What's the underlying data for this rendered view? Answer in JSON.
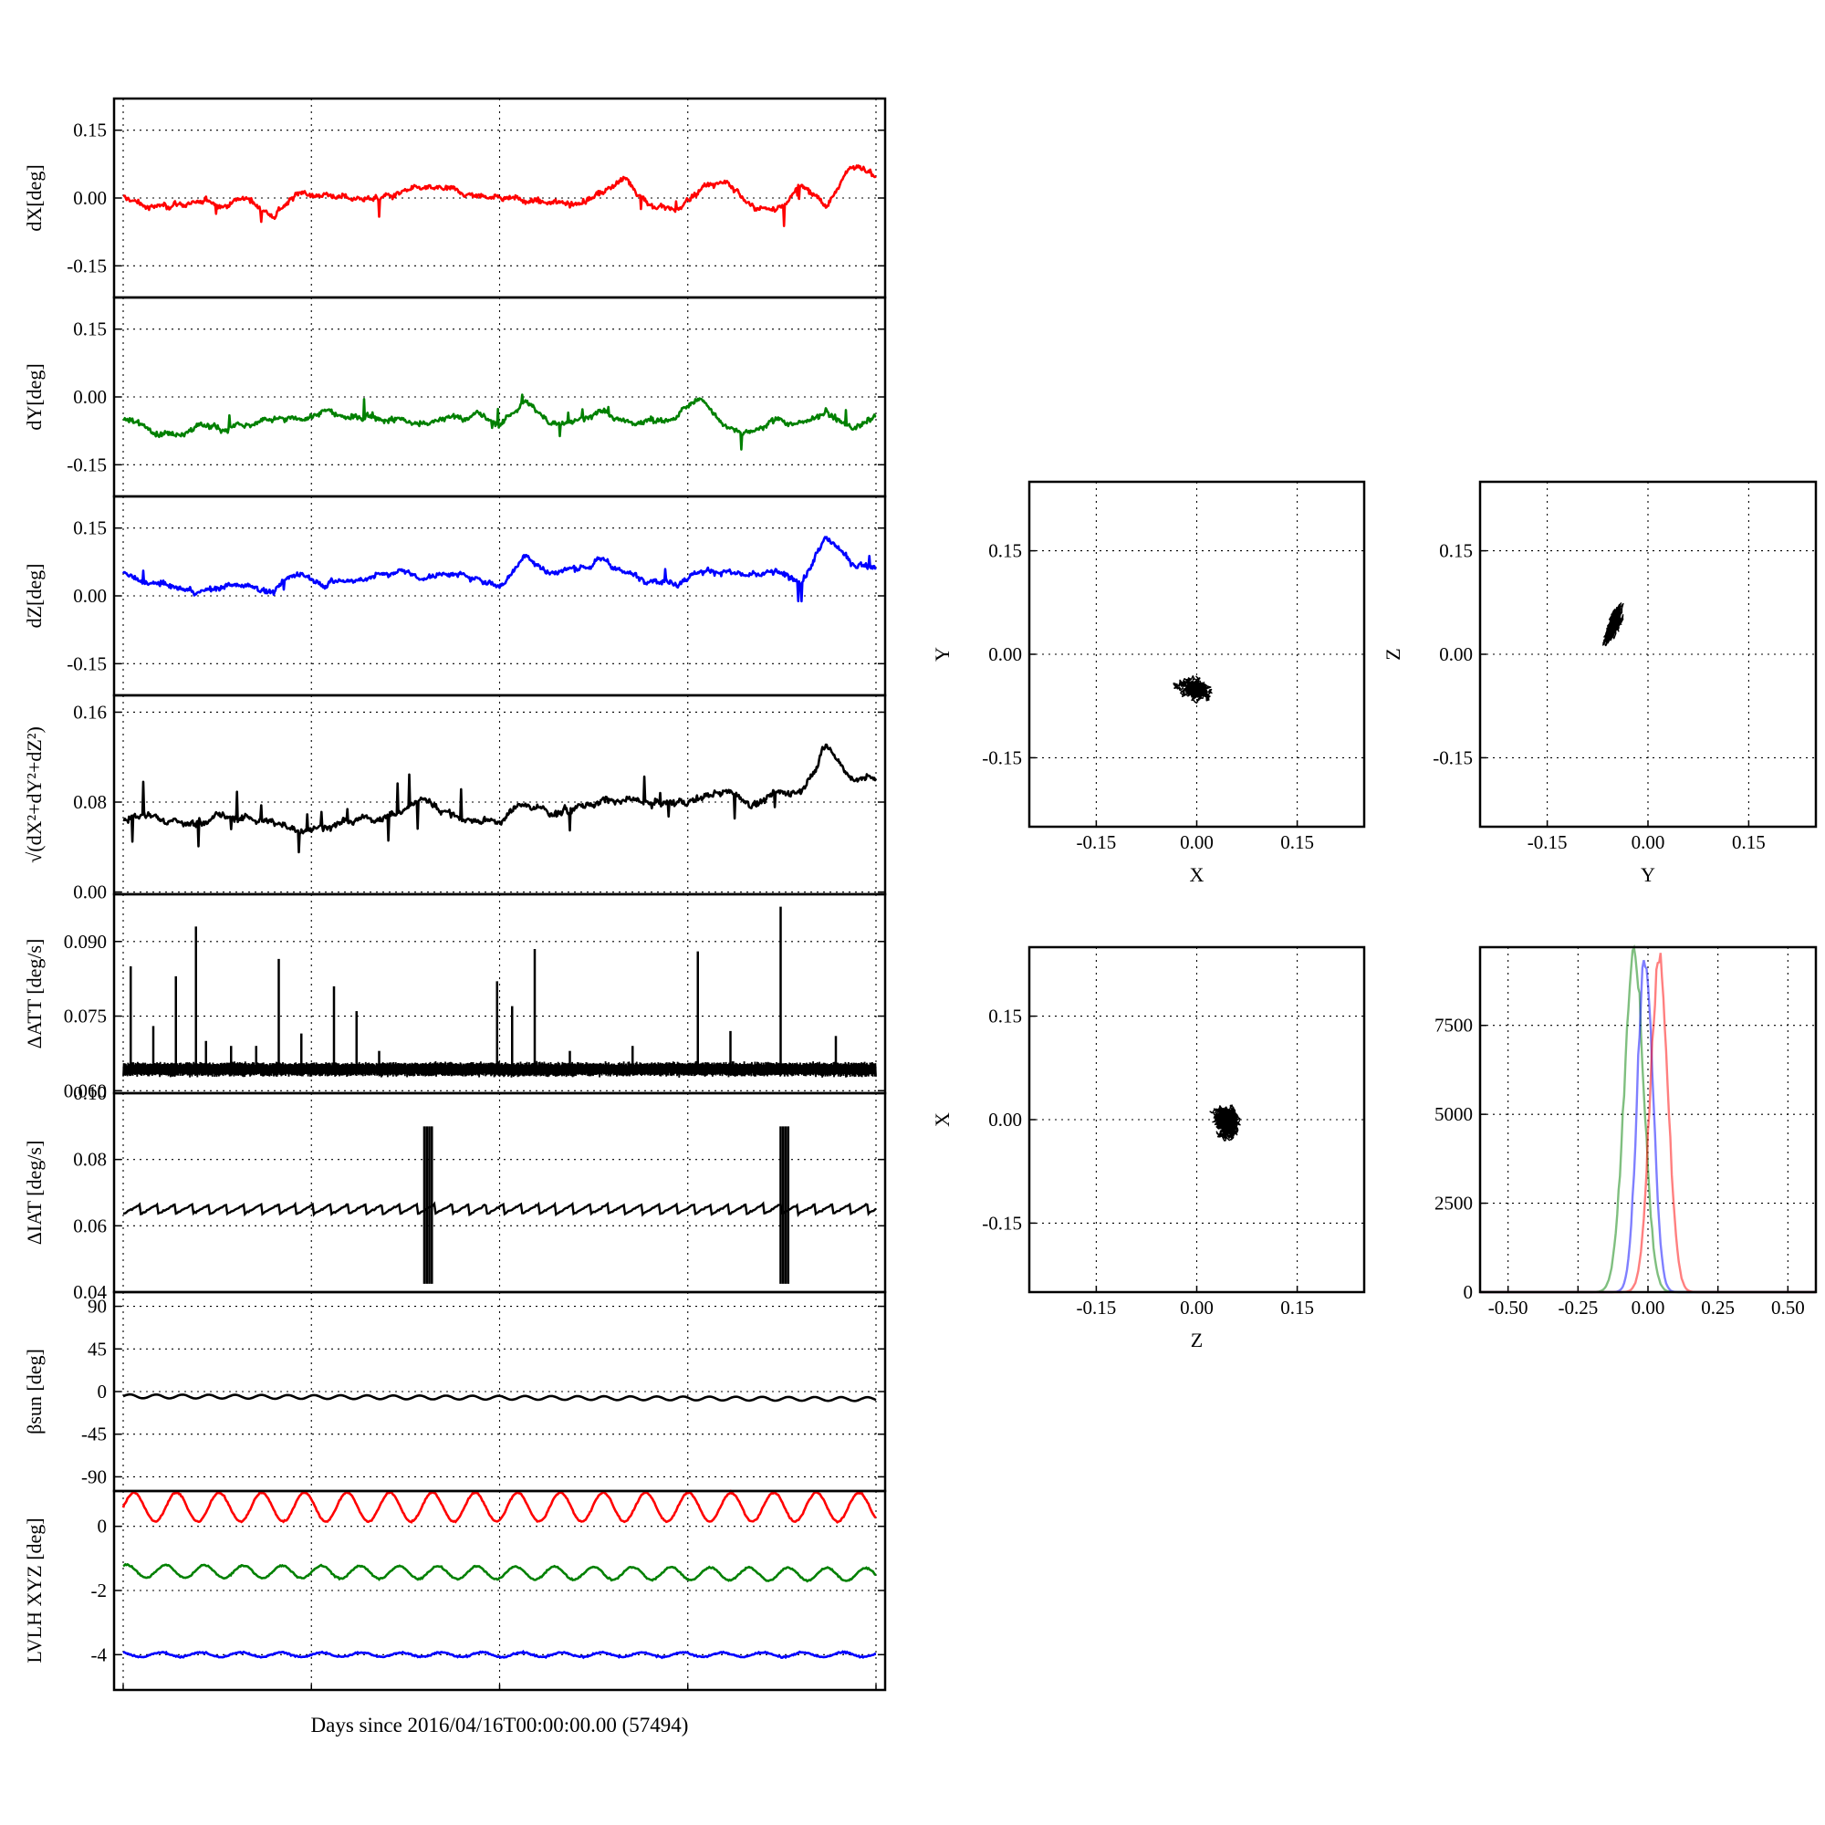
{
  "colors": {
    "x": "#ff0000",
    "y": "#008000",
    "z": "#0000ff",
    "k": "#000000"
  },
  "chart_data": [
    {
      "type": "line",
      "ylabel": "dX[deg]",
      "yticks": [
        "0.15",
        "0.00",
        "-0.15"
      ],
      "ylim": [
        -0.22,
        0.22
      ],
      "xlim": [
        0,
        30
      ],
      "grid": true,
      "series": [
        {
          "color": "#ff0000",
          "x": [
            0,
            1,
            2,
            3,
            4,
            5,
            6,
            7,
            8,
            9,
            10,
            11,
            12,
            13,
            14,
            15,
            16,
            17,
            18,
            19,
            20,
            21,
            22,
            23,
            24,
            25,
            26,
            27,
            28,
            29,
            30
          ],
          "y": [
            0.0,
            -0.02,
            -0.01,
            -0.01,
            -0.01,
            0.0,
            -0.04,
            0.01,
            0.01,
            0.0,
            0.0,
            0.01,
            0.02,
            0.02,
            0.0,
            0.01,
            -0.01,
            -0.01,
            -0.01,
            0.01,
            0.04,
            -0.01,
            -0.03,
            0.02,
            0.04,
            -0.02,
            -0.03,
            0.03,
            -0.02,
            0.07,
            0.05
          ]
        }
      ]
    },
    {
      "type": "line",
      "ylabel": "dY[deg]",
      "yticks": [
        "0.15",
        "0.00",
        "-0.15"
      ],
      "ylim": [
        -0.22,
        0.22
      ],
      "xlim": [
        0,
        30
      ],
      "grid": true,
      "series": [
        {
          "color": "#008000",
          "x": [
            0,
            1,
            2,
            3,
            4,
            5,
            6,
            7,
            8,
            9,
            10,
            11,
            12,
            13,
            14,
            15,
            16,
            17,
            18,
            19,
            20,
            21,
            22,
            23,
            24,
            25,
            26,
            27,
            28,
            29,
            30
          ],
          "y": [
            -0.05,
            -0.07,
            -0.08,
            -0.06,
            -0.07,
            -0.06,
            -0.05,
            -0.05,
            -0.03,
            -0.05,
            -0.04,
            -0.05,
            -0.06,
            -0.05,
            -0.04,
            -0.06,
            -0.01,
            -0.06,
            -0.05,
            -0.03,
            -0.06,
            -0.05,
            -0.05,
            0.0,
            -0.06,
            -0.08,
            -0.05,
            -0.06,
            -0.03,
            -0.07,
            -0.04
          ]
        }
      ]
    },
    {
      "type": "line",
      "ylabel": "dZ[deg]",
      "yticks": [
        "0.15",
        "0.00",
        "-0.15"
      ],
      "ylim": [
        -0.22,
        0.22
      ],
      "xlim": [
        0,
        30
      ],
      "grid": true,
      "series": [
        {
          "color": "#0000ff",
          "x": [
            0,
            1,
            2,
            3,
            4,
            5,
            6,
            7,
            8,
            9,
            10,
            11,
            12,
            13,
            14,
            15,
            16,
            17,
            18,
            19,
            20,
            21,
            22,
            23,
            24,
            25,
            26,
            27,
            28,
            29,
            30
          ],
          "y": [
            0.05,
            0.02,
            0.02,
            0.01,
            0.02,
            0.03,
            0.01,
            0.05,
            0.03,
            0.03,
            0.04,
            0.06,
            0.04,
            0.05,
            0.04,
            0.02,
            0.09,
            0.05,
            0.06,
            0.08,
            0.05,
            0.04,
            0.03,
            0.06,
            0.05,
            0.04,
            0.05,
            0.03,
            0.13,
            0.07,
            0.07
          ]
        }
      ]
    },
    {
      "type": "line",
      "ylabel": "√(dX²+dY²+dZ²)",
      "yticks": [
        "0.16",
        "0.08",
        "0.00"
      ],
      "ylim": [
        -0.002,
        0.175
      ],
      "xlim": [
        0,
        30
      ],
      "grid": true,
      "series": [
        {
          "color": "#000000",
          "x": [
            0,
            1,
            2,
            3,
            4,
            5,
            6,
            7,
            8,
            9,
            10,
            11,
            12,
            13,
            14,
            15,
            16,
            17,
            18,
            19,
            20,
            21,
            22,
            23,
            24,
            25,
            26,
            27,
            28,
            29,
            30
          ],
          "y": [
            0.065,
            0.07,
            0.062,
            0.064,
            0.066,
            0.067,
            0.06,
            0.055,
            0.06,
            0.062,
            0.065,
            0.07,
            0.08,
            0.07,
            0.062,
            0.065,
            0.08,
            0.072,
            0.075,
            0.08,
            0.082,
            0.078,
            0.078,
            0.085,
            0.09,
            0.08,
            0.085,
            0.09,
            0.13,
            0.1,
            0.1
          ]
        }
      ]
    },
    {
      "type": "line",
      "ylabel": "ΔATT [deg/s]",
      "yticks": [
        "0.090",
        "0.075",
        "0.060"
      ],
      "ylim": [
        0.0595,
        0.0995
      ],
      "xlim": [
        0,
        30
      ],
      "grid": true,
      "series": [
        {
          "color": "#000000",
          "x": [
            0,
            1,
            2,
            3,
            4,
            5,
            6,
            7,
            8,
            9,
            10,
            11,
            12,
            13,
            14,
            15,
            16,
            17,
            18,
            19,
            20,
            21,
            22,
            23,
            24,
            25,
            26,
            27,
            28,
            29,
            30
          ],
          "y": [
            0.0645,
            0.0645,
            0.064,
            0.0645,
            0.064,
            0.0645,
            0.0645,
            0.064,
            0.0645,
            0.0645,
            0.064,
            0.0645,
            0.0645,
            0.064,
            0.0645,
            0.0645,
            0.064,
            0.0645,
            0.0645,
            0.064,
            0.0645,
            0.0645,
            0.064,
            0.0645,
            0.0645,
            0.064,
            0.0645,
            0.0645,
            0.064,
            0.0645,
            0.0645
          ]
        }
      ],
      "spikes": [
        [
          0.3,
          0.085
        ],
        [
          1.2,
          0.073
        ],
        [
          2.1,
          0.083
        ],
        [
          2.9,
          0.093
        ],
        [
          3.3,
          0.07
        ],
        [
          4.3,
          0.069
        ],
        [
          5.3,
          0.069
        ],
        [
          6.2,
          0.0865
        ],
        [
          7.1,
          0.0715
        ],
        [
          8.4,
          0.081
        ],
        [
          9.3,
          0.076
        ],
        [
          10.2,
          0.068
        ],
        [
          14.9,
          0.082
        ],
        [
          15.5,
          0.077
        ],
        [
          16.4,
          0.0885
        ],
        [
          17.8,
          0.068
        ],
        [
          20.3,
          0.069
        ],
        [
          22.9,
          0.088
        ],
        [
          24.2,
          0.072
        ],
        [
          26.2,
          0.097
        ],
        [
          28.4,
          0.071
        ]
      ]
    },
    {
      "type": "line",
      "ylabel": "ΔIAT [deg/s]",
      "yticks": [
        "0.10",
        "0.08",
        "0.06",
        "0.04"
      ],
      "ylim": [
        0.04,
        0.1
      ],
      "xlim": [
        0,
        30
      ],
      "grid": true,
      "series": [
        {
          "color": "#000000",
          "x": [
            0,
            30
          ],
          "y": [
            0.065,
            0.065
          ]
        }
      ],
      "bursts": [
        [
          12.0,
          12.3
        ],
        [
          26.2,
          26.5
        ]
      ]
    },
    {
      "type": "line",
      "ylabel": "βsun [deg]",
      "yticks": [
        "90",
        "45",
        "0",
        "-45",
        "-90"
      ],
      "ylim": [
        -105,
        105
      ],
      "xlim": [
        0,
        30
      ],
      "grid": true,
      "series": [
        {
          "color": "#000000",
          "x": [
            0,
            30
          ],
          "y": [
            -5,
            -8
          ]
        }
      ]
    },
    {
      "type": "line",
      "ylabel": "LVLH XYZ [deg]",
      "yticks": [
        "0",
        "-2",
        "-4"
      ],
      "ylim": [
        -5.1,
        1.1
      ],
      "xlim": [
        0,
        30
      ],
      "xlabel": "Days since 2016/04/16T00:00:00.00 (57494)",
      "grid": true,
      "series": [
        {
          "color": "#ff0000",
          "x": [
            0,
            30
          ],
          "y": [
            0.6,
            0.6
          ]
        },
        {
          "color": "#008000",
          "x": [
            0,
            30
          ],
          "y": [
            -1.4,
            -1.5
          ]
        },
        {
          "color": "#0000ff",
          "x": [
            0,
            30
          ],
          "y": [
            -4.0,
            -4.0
          ]
        }
      ]
    },
    {
      "type": "scatter",
      "xlabel": "X",
      "ylabel": "Y",
      "xticks": [
        "-0.15",
        "0.00",
        "0.15"
      ],
      "yticks": [
        "0.15",
        "0.00",
        "-0.15"
      ],
      "xlim": [
        -0.25,
        0.25
      ],
      "ylim": [
        -0.25,
        0.25
      ],
      "grid": true,
      "center": [
        0.0,
        -0.05
      ],
      "spread": [
        0.025,
        0.018
      ],
      "tilt": 0
    },
    {
      "type": "scatter",
      "xlabel": "Y",
      "ylabel": "Z",
      "xticks": [
        "-0.15",
        "0.00",
        "0.15"
      ],
      "yticks": [
        "0.15",
        "0.00",
        "-0.15"
      ],
      "xlim": [
        -0.25,
        0.25
      ],
      "ylim": [
        -0.25,
        0.25
      ],
      "grid": true,
      "center": [
        -0.05,
        0.045
      ],
      "spread": [
        0.012,
        0.035
      ],
      "tilt": 0.6
    },
    {
      "type": "scatter",
      "xlabel": "Z",
      "ylabel": "X",
      "xticks": [
        "-0.15",
        "0.00",
        "0.15"
      ],
      "yticks": [
        "0.15",
        "0.00",
        "-0.15"
      ],
      "xlim": [
        -0.25,
        0.25
      ],
      "ylim": [
        -0.25,
        0.25
      ],
      "grid": true,
      "center": [
        0.045,
        0.0
      ],
      "spread": [
        0.025,
        0.028
      ],
      "tilt": 0
    },
    {
      "type": "histogram",
      "xticks": [
        "-0.50",
        "-0.25",
        "0.00",
        "0.25",
        "0.50"
      ],
      "yticks": [
        "7500",
        "5000",
        "2500",
        "0"
      ],
      "xlim": [
        -0.6,
        0.6
      ],
      "ylim": [
        0,
        9700
      ],
      "grid": true,
      "series": [
        {
          "color": "#008000",
          "peak_x": -0.05,
          "peak": 9500,
          "width": 0.035
        },
        {
          "color": "#0000ff",
          "peak_x": -0.01,
          "peak": 9400,
          "width": 0.028
        },
        {
          "color": "#ff0000",
          "peak_x": 0.04,
          "peak": 9300,
          "width": 0.032
        }
      ]
    }
  ]
}
